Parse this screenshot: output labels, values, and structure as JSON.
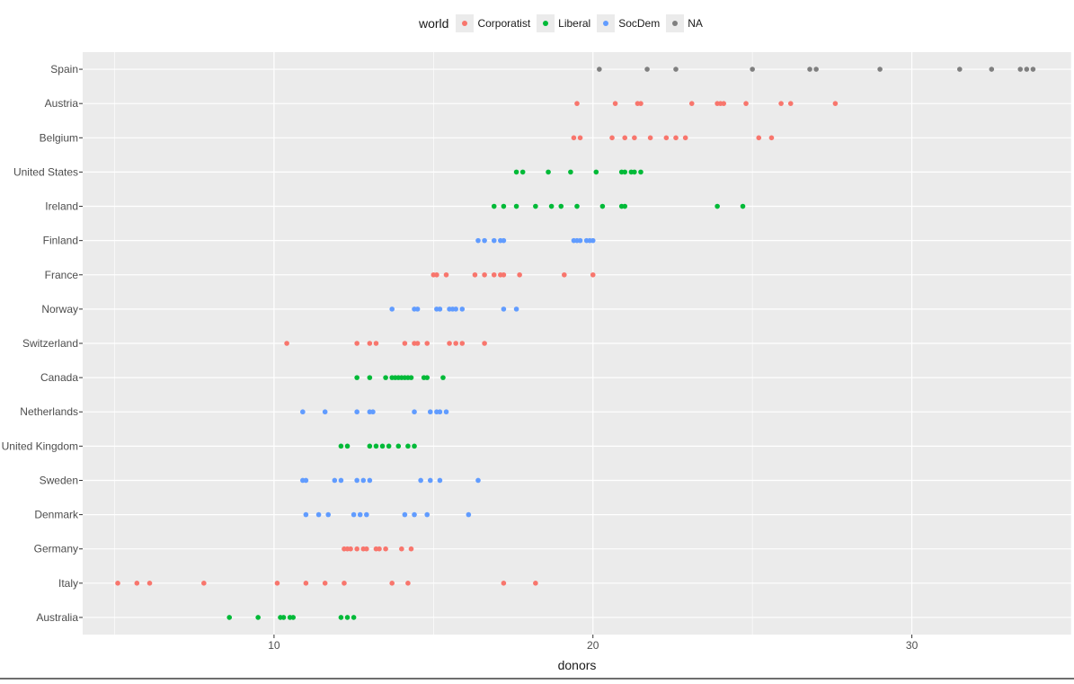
{
  "chart_data": {
    "type": "scatter",
    "title": "",
    "xlabel": "donors",
    "ylabel": "",
    "xlim": [
      4,
      35
    ],
    "x_ticks": [
      10,
      20,
      30
    ],
    "grid": true,
    "legend": {
      "title": "world",
      "placement": "top",
      "entries": [
        {
          "name": "Corporatist",
          "color": "#f8766d"
        },
        {
          "name": "Liberal",
          "color": "#00ba38"
        },
        {
          "name": "SocDem",
          "color": "#619cff"
        },
        {
          "name": "NA",
          "color": "#7f7f7f"
        }
      ]
    },
    "categories": [
      "Spain",
      "Austria",
      "Belgium",
      "United States",
      "Ireland",
      "Finland",
      "France",
      "Norway",
      "Switzerland",
      "Canada",
      "Netherlands",
      "United Kingdom",
      "Sweden",
      "Denmark",
      "Germany",
      "Italy",
      "Australia"
    ],
    "series": [
      {
        "country": "Spain",
        "group": "NA",
        "values": [
          20.2,
          21.7,
          22.6,
          25.0,
          26.8,
          27.0,
          29.0,
          31.5,
          32.5,
          33.4,
          33.6,
          33.8
        ]
      },
      {
        "country": "Austria",
        "group": "Corporatist",
        "values": [
          19.5,
          20.7,
          21.4,
          21.5,
          23.1,
          23.9,
          24.0,
          24.1,
          24.8,
          25.9,
          26.2,
          27.6
        ]
      },
      {
        "country": "Belgium",
        "group": "Corporatist",
        "values": [
          19.4,
          19.6,
          20.6,
          21.0,
          21.3,
          21.8,
          22.3,
          22.6,
          22.9,
          25.2,
          25.6
        ]
      },
      {
        "country": "United States",
        "group": "Liberal",
        "values": [
          17.6,
          17.8,
          18.6,
          19.3,
          20.1,
          20.9,
          21.0,
          21.2,
          21.3,
          21.5
        ]
      },
      {
        "country": "Ireland",
        "group": "Liberal",
        "values": [
          16.9,
          17.2,
          17.6,
          18.2,
          18.7,
          19.0,
          19.5,
          20.3,
          20.9,
          21.0,
          23.9,
          24.7
        ]
      },
      {
        "country": "Finland",
        "group": "SocDem",
        "values": [
          16.4,
          16.6,
          16.9,
          17.1,
          17.2,
          19.4,
          19.5,
          19.6,
          19.8,
          19.9,
          20.0
        ]
      },
      {
        "country": "France",
        "group": "Corporatist",
        "values": [
          15.0,
          15.1,
          15.4,
          16.3,
          16.6,
          16.9,
          17.1,
          17.2,
          17.7,
          19.1,
          20.0
        ]
      },
      {
        "country": "Norway",
        "group": "SocDem",
        "values": [
          13.7,
          14.4,
          14.5,
          15.1,
          15.2,
          15.5,
          15.6,
          15.7,
          15.9,
          17.2,
          17.6
        ]
      },
      {
        "country": "Switzerland",
        "group": "Corporatist",
        "values": [
          10.4,
          12.6,
          13.0,
          13.2,
          14.1,
          14.4,
          14.5,
          14.8,
          15.5,
          15.7,
          15.9,
          16.6
        ]
      },
      {
        "country": "Canada",
        "group": "Liberal",
        "values": [
          12.6,
          13.0,
          13.5,
          13.7,
          13.8,
          13.9,
          14.0,
          14.1,
          14.2,
          14.3,
          14.7,
          14.8,
          15.3
        ]
      },
      {
        "country": "Netherlands",
        "group": "SocDem",
        "values": [
          10.9,
          11.6,
          12.6,
          13.0,
          13.1,
          14.4,
          14.9,
          15.1,
          15.2,
          15.4
        ]
      },
      {
        "country": "United Kingdom",
        "group": "Liberal",
        "values": [
          12.1,
          12.3,
          13.0,
          13.2,
          13.4,
          13.6,
          13.9,
          14.2,
          14.4
        ]
      },
      {
        "country": "Sweden",
        "group": "SocDem",
        "values": [
          10.9,
          11.0,
          11.9,
          12.1,
          12.6,
          12.8,
          13.0,
          14.6,
          14.9,
          15.2,
          16.4
        ]
      },
      {
        "country": "Denmark",
        "group": "SocDem",
        "values": [
          11.0,
          11.4,
          11.7,
          12.5,
          12.7,
          12.9,
          14.1,
          14.4,
          14.8,
          16.1
        ]
      },
      {
        "country": "Germany",
        "group": "Corporatist",
        "values": [
          12.2,
          12.3,
          12.4,
          12.6,
          12.8,
          12.9,
          13.2,
          13.3,
          13.5,
          14.0,
          14.3
        ]
      },
      {
        "country": "Italy",
        "group": "Corporatist",
        "values": [
          5.1,
          5.7,
          6.1,
          7.8,
          10.1,
          11.0,
          11.6,
          12.2,
          13.7,
          14.2,
          17.2,
          18.2
        ]
      },
      {
        "country": "Australia",
        "group": "Liberal",
        "values": [
          8.6,
          9.5,
          10.2,
          10.3,
          10.5,
          10.6,
          12.1,
          12.3,
          12.5
        ]
      }
    ]
  }
}
